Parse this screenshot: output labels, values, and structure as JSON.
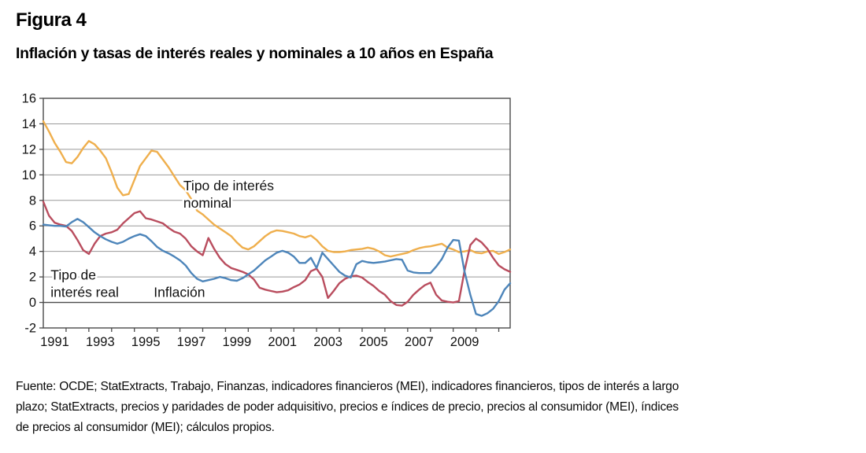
{
  "figure": {
    "title": "Figura 4",
    "subtitle": "Inflación y tasas de interés reales y nominales a 10 años en España"
  },
  "source_note": {
    "lines": [
      "Fuente: OCDE; StatExtracts, Trabajo, Finanzas, indicadores financieros (MEI), indicadores financieros, tipos de interés a largo",
      "plazo; StatExtracts, precios y paridades de poder adquisitivo, precios e índices de precio, precios al consumidor (MEI), índices",
      "de precios al consumidor (MEI); cálculos propios."
    ]
  },
  "chart_data": {
    "type": "line",
    "title": "Inflación y tasas de interés reales y nominales a 10 años en España",
    "xlabel": "",
    "ylabel": "",
    "grid": "horizontal",
    "legend_position": "in-plot text annotations",
    "ylim": [
      -2,
      16
    ],
    "ytick_step": 2,
    "y_tick_labels": [
      16,
      14,
      12,
      10,
      8,
      6,
      4,
      2,
      0,
      -2
    ],
    "x_domain": [
      1990.5,
      2011.0
    ],
    "x_start": 1990.5,
    "x_step": 0.25,
    "x_tick_marks": {
      "start": 1991.5,
      "step": 1,
      "count": 20
    },
    "x_tick_labels": [
      1991,
      1993,
      1995,
      1997,
      1999,
      2001,
      2003,
      2005,
      2007,
      2009
    ],
    "axis_color": "#4a4a4a",
    "grid_color": "#999999",
    "zero_line_color": "#4a4a4a",
    "series": [
      {
        "id": "nominal",
        "name": "Tipo de interés nominal",
        "color": "#EFAF4D",
        "values": [
          14.2,
          13.4,
          12.5,
          11.8,
          11.0,
          10.9,
          11.4,
          12.1,
          12.65,
          12.4,
          11.9,
          11.3,
          10.2,
          9.0,
          8.4,
          8.5,
          9.6,
          10.7,
          11.3,
          11.9,
          11.8,
          11.2,
          10.6,
          9.9,
          9.2,
          8.8,
          8.1,
          7.2,
          6.9,
          6.5,
          6.1,
          5.8,
          5.5,
          5.2,
          4.7,
          4.3,
          4.15,
          4.4,
          4.8,
          5.2,
          5.5,
          5.65,
          5.6,
          5.5,
          5.4,
          5.2,
          5.1,
          5.25,
          4.9,
          4.4,
          4.05,
          3.95,
          3.95,
          4.0,
          4.1,
          4.15,
          4.2,
          4.3,
          4.2,
          4.0,
          3.7,
          3.6,
          3.7,
          3.8,
          3.9,
          4.1,
          4.25,
          4.35,
          4.4,
          4.5,
          4.6,
          4.3,
          4.15,
          3.95,
          4.0,
          4.1,
          3.9,
          3.85,
          4.0,
          4.05,
          3.8,
          3.95,
          4.15
        ]
      },
      {
        "id": "real",
        "name": "Tipo de interés real",
        "color": "#B94D5E",
        "values": [
          7.9,
          6.8,
          6.25,
          6.1,
          6.0,
          5.6,
          4.9,
          4.1,
          3.8,
          4.6,
          5.2,
          5.4,
          5.5,
          5.7,
          6.2,
          6.6,
          7.0,
          7.15,
          6.6,
          6.5,
          6.35,
          6.2,
          5.85,
          5.55,
          5.4,
          5.0,
          4.4,
          4.0,
          3.7,
          5.05,
          4.2,
          3.5,
          3.0,
          2.7,
          2.55,
          2.4,
          2.2,
          1.8,
          1.15,
          1.0,
          0.9,
          0.8,
          0.85,
          0.95,
          1.2,
          1.4,
          1.75,
          2.45,
          2.65,
          2.0,
          0.35,
          0.9,
          1.5,
          1.85,
          2.05,
          2.1,
          1.95,
          1.6,
          1.3,
          0.9,
          0.6,
          0.1,
          -0.2,
          -0.25,
          0.05,
          0.6,
          1.0,
          1.35,
          1.55,
          0.6,
          0.15,
          0.05,
          0.0,
          0.1,
          2.5,
          4.5,
          5.0,
          4.7,
          4.2,
          3.5,
          2.9,
          2.6,
          2.4
        ]
      },
      {
        "id": "inflacion",
        "name": "Inflación",
        "color": "#4D85BA",
        "values": [
          6.1,
          6.05,
          6.0,
          6.0,
          5.95,
          6.3,
          6.55,
          6.3,
          5.9,
          5.5,
          5.2,
          4.95,
          4.75,
          4.6,
          4.75,
          5.0,
          5.2,
          5.35,
          5.2,
          4.8,
          4.35,
          4.05,
          3.85,
          3.6,
          3.3,
          2.9,
          2.3,
          1.85,
          1.65,
          1.75,
          1.85,
          2.0,
          1.9,
          1.75,
          1.7,
          1.9,
          2.2,
          2.5,
          2.9,
          3.3,
          3.6,
          3.9,
          4.05,
          3.9,
          3.6,
          3.1,
          3.1,
          3.5,
          2.7,
          3.9,
          3.4,
          2.9,
          2.4,
          2.1,
          1.95,
          3.0,
          3.25,
          3.15,
          3.1,
          3.15,
          3.2,
          3.3,
          3.4,
          3.35,
          2.5,
          2.35,
          2.3,
          2.3,
          2.3,
          2.8,
          3.4,
          4.3,
          4.9,
          4.85,
          2.4,
          0.6,
          -0.9,
          -1.05,
          -0.85,
          -0.5,
          0.1,
          1.0,
          1.5
        ]
      }
    ],
    "annotations": [
      {
        "id": "nominal-label",
        "text_lines": [
          "Tipo de interés",
          "nominal"
        ],
        "x": 1996.65,
        "y": 8.8
      },
      {
        "id": "real-label",
        "text_lines": [
          "Tipo de",
          "interés real"
        ],
        "x": 1990.82,
        "y": 1.78
      },
      {
        "id": "inflacion-label",
        "text_lines": [
          "Inflación"
        ],
        "x": 1995.35,
        "y": 0.43
      }
    ]
  }
}
